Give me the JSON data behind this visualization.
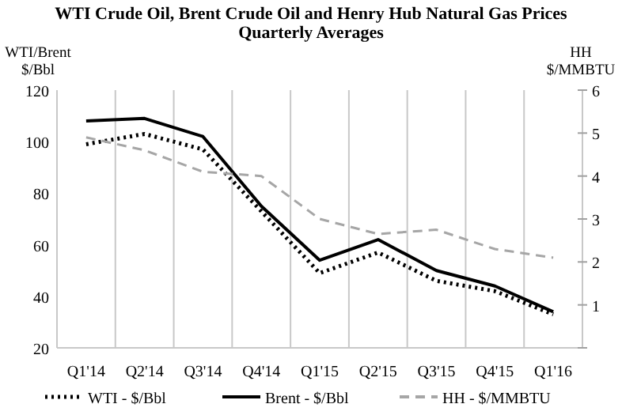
{
  "chart_data": {
    "type": "line",
    "title": "WTI Crude Oil, Brent Crude Oil and Henry Hub Natural Gas Prices",
    "subtitle": "Quarterly Averages",
    "ylabel": "WTI/Brent\n$/Bbl",
    "y2label": "HH\n$/MMBTU",
    "categories": [
      "Q1'14",
      "Q2'14",
      "Q3'14",
      "Q4'14",
      "Q1'15",
      "Q2'15",
      "Q3'15",
      "Q4'15",
      "Q1'16"
    ],
    "series": [
      {
        "name": "WTI - $/Bbl",
        "color": "#000000",
        "line_style": "dotted",
        "values": [
          99,
          103,
          97,
          73,
          49,
          57,
          46,
          42,
          33
        ]
      },
      {
        "name": "Brent - $/Bbl",
        "color": "#000000",
        "line_style": "solid",
        "values": [
          108,
          109,
          102,
          75,
          54,
          62,
          50,
          44,
          34
        ]
      },
      {
        "name": "HH - $/MMBTU",
        "color": "#a6a6a6",
        "line_style": "dashed",
        "axis": "y2",
        "values": [
          4.9,
          4.6,
          4.1,
          4.0,
          3.0,
          2.65,
          2.75,
          2.3,
          2.1
        ]
      }
    ],
    "ylim": [
      20,
      120
    ],
    "yticks": [
      20,
      40,
      60,
      80,
      100,
      120
    ],
    "y2lim": [
      0,
      6
    ],
    "y2ticks": [
      {
        "value": 0,
        "label": null
      },
      1,
      2,
      3,
      4,
      5,
      6
    ],
    "grid": "x",
    "legend": "bottom",
    "marker": "none"
  }
}
